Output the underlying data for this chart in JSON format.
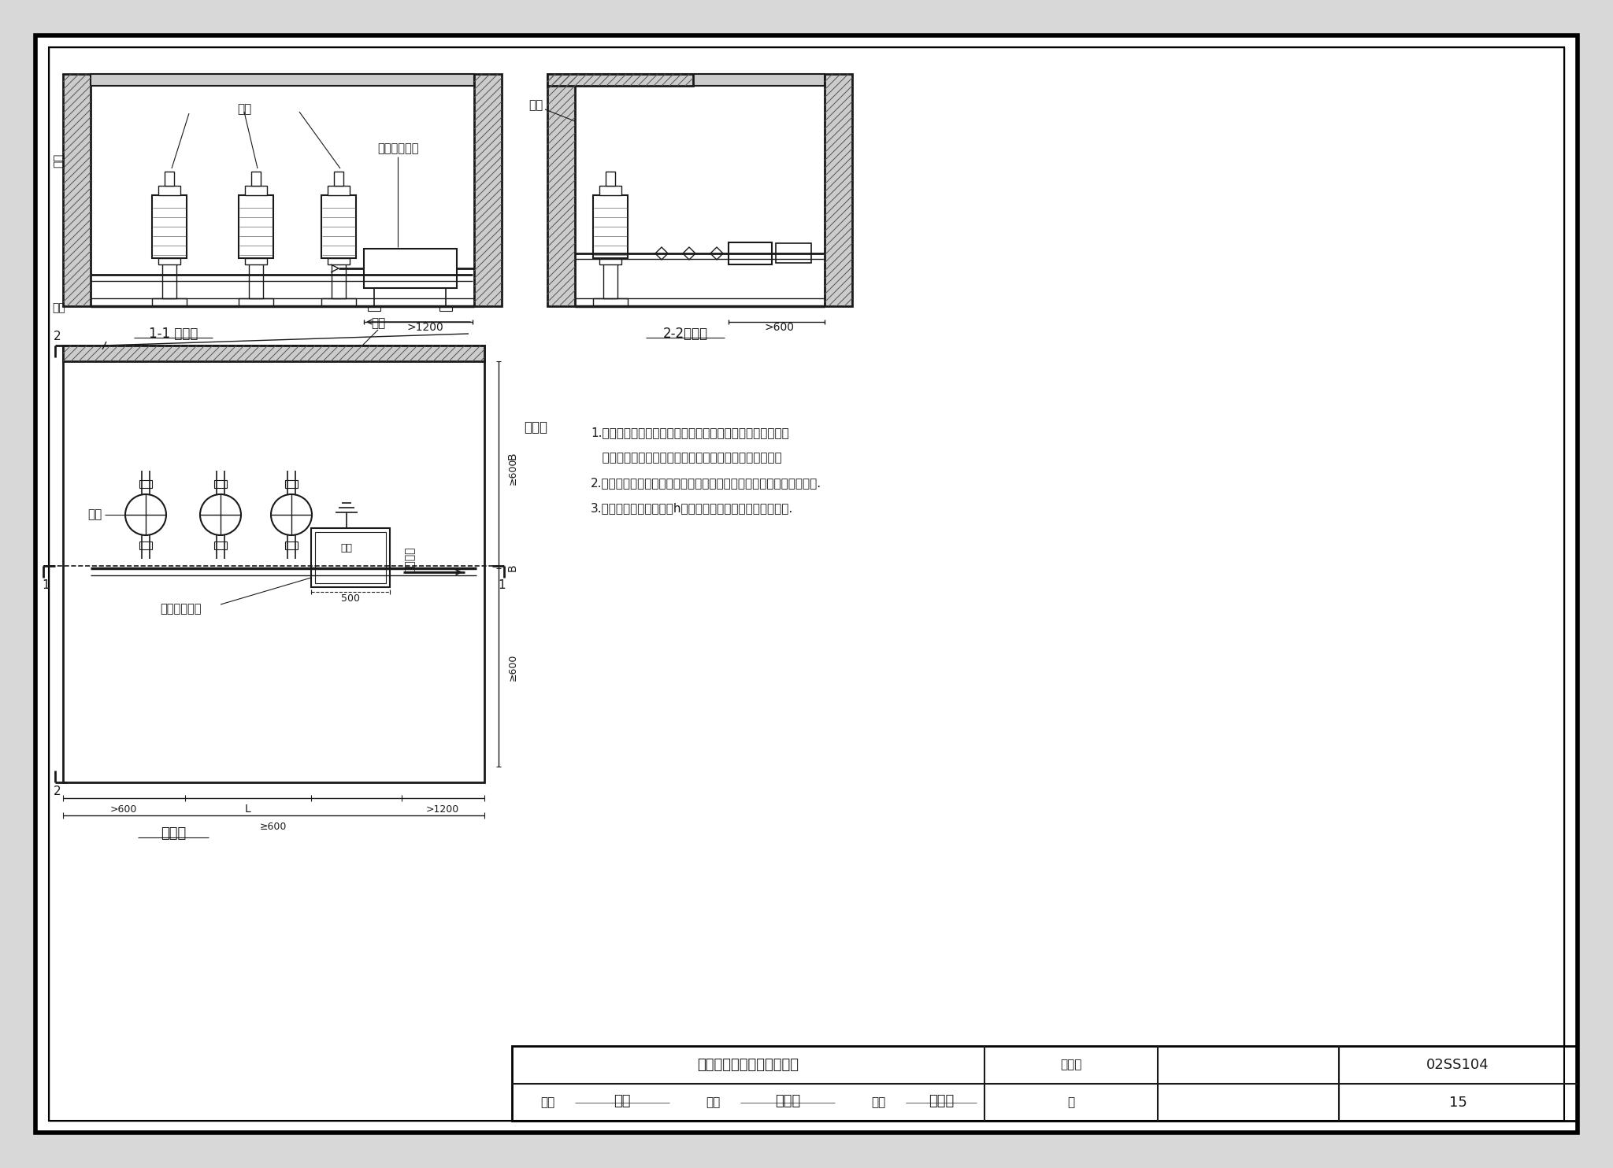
{
  "bg_color": "#d8d8d8",
  "page_bg": "#ffffff",
  "line_color": "#1a1a1a",
  "title1": "1-1 剖面图",
  "title2": "2-2剖面图",
  "title3": "平面图",
  "note_title": "说明：",
  "notes_line1": "1.二次供水采用水泵从水池吸水向管网供水时，紫外线消毒器",
  "notes_line2": "   可安装在水泵出水总管上，并在出水管安装缓闭逆止阀。",
  "notes_line3": "2.本图为侧向式紫外线消毒器的安装图，也可使用上向式紫外线消毒器.",
  "notes_line4": "3.紫外线消毒器安装高度h由设计选用人员根据设备情况自定.",
  "table_title": "紫外线消毒器安装图（三）",
  "table_collection": "图集号",
  "table_collection_val": "02SS104",
  "table_review": "审核",
  "table_check": "校对",
  "table_design": "设计",
  "table_page_label": "页",
  "table_page_val": "15"
}
